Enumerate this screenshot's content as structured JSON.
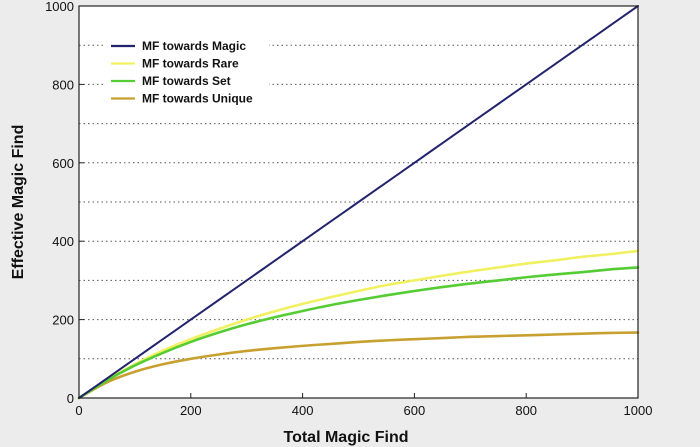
{
  "chart_data": {
    "type": "line",
    "title": "",
    "xlabel": "Total Magic Find",
    "ylabel": "Effective Magic Find",
    "xlim": [
      0,
      1000
    ],
    "ylim": [
      0,
      1000
    ],
    "x_ticks": [
      0,
      200,
      400,
      600,
      800,
      1000
    ],
    "y_ticks": [
      0,
      200,
      400,
      600,
      800,
      1000
    ],
    "grid": "horizontal dotted",
    "legend_position": "top-left",
    "x": [
      0,
      50,
      100,
      150,
      200,
      250,
      300,
      350,
      400,
      450,
      500,
      550,
      600,
      650,
      700,
      750,
      800,
      850,
      900,
      950,
      1000
    ],
    "series": [
      {
        "name": "MF towards Magic",
        "color": "#23236e",
        "values": [
          0,
          50,
          100,
          150,
          200,
          250,
          300,
          350,
          400,
          450,
          500,
          550,
          600,
          650,
          700,
          750,
          800,
          850,
          900,
          950,
          1000
        ]
      },
      {
        "name": "MF towards Rare",
        "color": "#f0f060",
        "values": [
          0,
          46,
          86,
          121,
          150,
          176,
          200,
          221,
          240,
          257,
          273,
          288,
          300,
          312,
          323,
          333,
          343,
          351,
          360,
          367,
          375
        ]
      },
      {
        "name": "MF towards Set",
        "color": "#55cc33",
        "values": [
          0,
          45,
          83,
          115,
          143,
          167,
          188,
          206,
          222,
          237,
          250,
          262,
          273,
          283,
          292,
          300,
          308,
          315,
          321,
          328,
          333
        ]
      },
      {
        "name": "MF towards Unique",
        "color": "#c8a030",
        "values": [
          0,
          40,
          67,
          86,
          100,
          111,
          120,
          127,
          133,
          138,
          143,
          147,
          150,
          153,
          156,
          158,
          160,
          162,
          164,
          166,
          167
        ]
      }
    ]
  }
}
